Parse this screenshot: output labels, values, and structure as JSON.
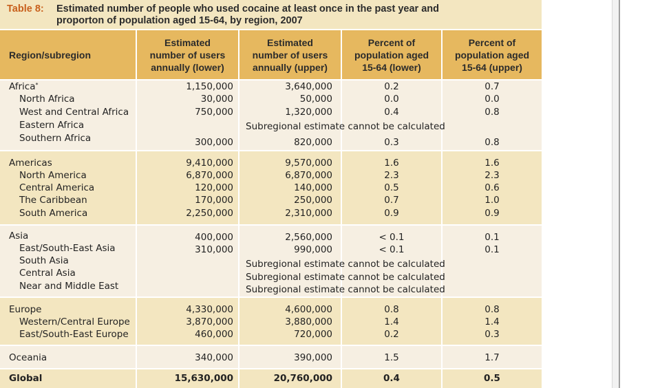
{
  "title": {
    "label": "Table 8:",
    "text_line1": "Estimated number of people who used cocaine at least once in the past year and",
    "text_line2": "proporton of population aged 15-64, by region, 2007"
  },
  "headers": {
    "region": "Region/subregion",
    "users_lower": [
      "Estimated",
      "number of users",
      "annually (lower)"
    ],
    "users_upper": [
      "Estimated",
      "number of users",
      "annually (upper)"
    ],
    "pct_lower": [
      "Percent of",
      "population aged",
      "15-64 (lower)"
    ],
    "pct_upper": [
      "Percent of",
      "population aged",
      "15-64 (upper)"
    ]
  },
  "note_text": "Subregional estimate cannot be calculated",
  "africa": {
    "name": "Africa",
    "footnote_mark": "*",
    "users_lower": "1,150,000",
    "users_upper": "3,640,000",
    "pct_lower": "0.2",
    "pct_upper": "0.7",
    "sub": [
      {
        "name": "North Africa",
        "users_lower": "30,000",
        "users_upper": "50,000",
        "pct_lower": "0.0",
        "pct_upper": "0.0"
      },
      {
        "name": "West and Central Africa",
        "users_lower": "750,000",
        "users_upper": "1,320,000",
        "pct_lower": "0.4",
        "pct_upper": "0.8"
      },
      {
        "name": "Eastern Africa"
      },
      {
        "name": "Southern Africa",
        "users_lower": "300,000",
        "users_upper": "820,000",
        "pct_lower": "0.3",
        "pct_upper": "0.8"
      }
    ]
  },
  "americas": {
    "name": "Americas",
    "users_lower": "9,410,000",
    "users_upper": "9,570,000",
    "pct_lower": "1.6",
    "pct_upper": "1.6",
    "sub": [
      {
        "name": "North America",
        "users_lower": "6,870,000",
        "users_upper": "6,870,000",
        "pct_lower": "2.3",
        "pct_upper": "2.3"
      },
      {
        "name": "Central America",
        "users_lower": "120,000",
        "users_upper": "140,000",
        "pct_lower": "0.5",
        "pct_upper": "0.6"
      },
      {
        "name": "The Caribbean",
        "users_lower": "170,000",
        "users_upper": "250,000",
        "pct_lower": "0.7",
        "pct_upper": "1.0"
      },
      {
        "name": "South America",
        "users_lower": "2,250,000",
        "users_upper": "2,310,000",
        "pct_lower": "0.9",
        "pct_upper": "0.9"
      }
    ]
  },
  "asia": {
    "name": "Asia",
    "users_lower": "400,000",
    "users_upper": "2,560,000",
    "pct_lower": "< 0.1",
    "pct_upper": "0.1",
    "sub": [
      {
        "name": "East/South-East Asia",
        "users_lower": "310,000",
        "users_upper": "990,000",
        "pct_lower": "< 0.1",
        "pct_upper": "0.1"
      },
      {
        "name": "South Asia"
      },
      {
        "name": "Central Asia"
      },
      {
        "name": "Near and Middle East"
      }
    ]
  },
  "europe": {
    "name": "Europe",
    "users_lower": "4,330,000",
    "users_upper": "4,600,000",
    "pct_lower": "0.8",
    "pct_upper": "0.8",
    "sub": [
      {
        "name": "Western/Central Europe",
        "users_lower": "3,870,000",
        "users_upper": "3,880,000",
        "pct_lower": "1.4",
        "pct_upper": "1.4"
      },
      {
        "name": "East/South-East Europe",
        "users_lower": "460,000",
        "users_upper": "720,000",
        "pct_lower": "0.2",
        "pct_upper": "0.3"
      }
    ]
  },
  "oceania": {
    "name": "Oceania",
    "users_lower": "340,000",
    "users_upper": "390,000",
    "pct_lower": "1.5",
    "pct_upper": "1.7"
  },
  "global": {
    "name": "Global",
    "users_lower": "15,630,000",
    "users_upper": "20,760,000",
    "pct_lower": "0.4",
    "pct_upper": "0.5"
  },
  "colors": {
    "title_bg": "#f3e6c0",
    "title_label": "#c8601c",
    "header_bg": "#e6b85f",
    "row_light": "#f6efe2",
    "row_dark": "#f3e6c0"
  }
}
